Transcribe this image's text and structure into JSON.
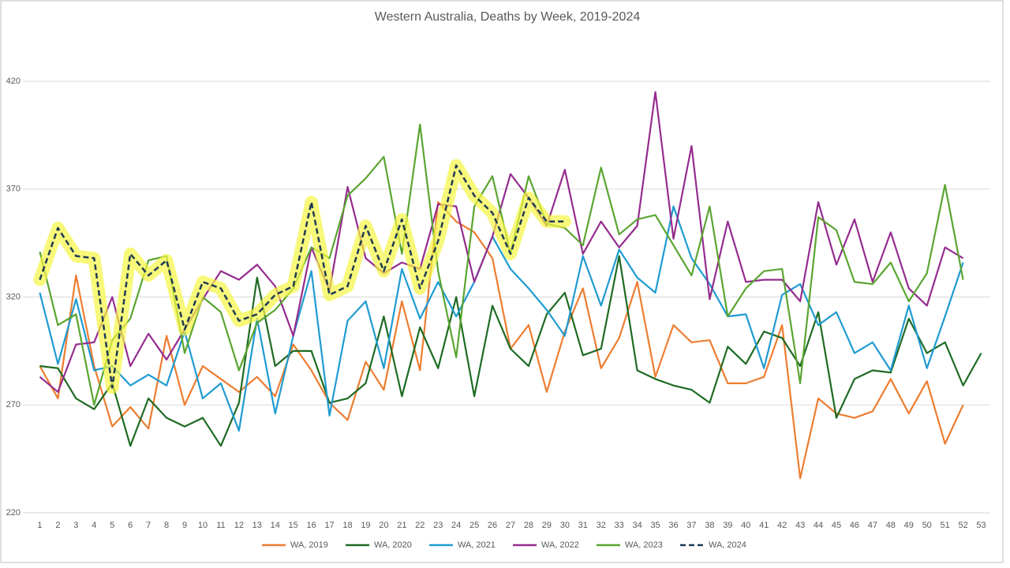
{
  "chart_data": {
    "type": "line",
    "title": "Western Australia, Deaths by Week, 2019-2024",
    "categories": [
      1,
      2,
      3,
      4,
      5,
      6,
      7,
      8,
      9,
      10,
      11,
      12,
      13,
      14,
      15,
      16,
      17,
      18,
      19,
      20,
      21,
      22,
      23,
      24,
      25,
      26,
      27,
      28,
      29,
      30,
      31,
      32,
      33,
      34,
      35,
      36,
      37,
      38,
      39,
      40,
      41,
      42,
      43,
      44,
      45,
      46,
      47,
      48,
      49,
      50,
      51,
      52,
      53
    ],
    "ylim": [
      220,
      420
    ],
    "yticks": [
      220,
      270,
      320,
      370,
      420
    ],
    "grid": true,
    "legend": "bottom",
    "series": [
      {
        "name": "WA, 2019",
        "color": "#ed7d31",
        "values": [
          288,
          273,
          330,
          288,
          260,
          269,
          259,
          302,
          270,
          288,
          282,
          276,
          283,
          274,
          298,
          286,
          271,
          263,
          290,
          277,
          318,
          286,
          364,
          355,
          350,
          338,
          296,
          307,
          276,
          304,
          324,
          287,
          301,
          327,
          283,
          307,
          299,
          300,
          280,
          280,
          283,
          307,
          236,
          273,
          266,
          264,
          267,
          282,
          266,
          281,
          252,
          270,
          null
        ]
      },
      {
        "name": "WA, 2020",
        "color": "#1e6b23",
        "values": [
          288,
          287,
          273,
          268,
          280,
          251,
          273,
          264,
          260,
          264,
          251,
          271,
          329,
          288,
          295,
          295,
          271,
          273,
          280,
          311,
          274,
          306,
          287,
          320,
          274,
          316,
          296,
          288,
          312,
          322,
          293,
          296,
          339,
          286,
          282,
          279,
          277,
          271,
          297,
          289,
          304,
          301,
          288,
          313,
          264,
          282,
          286,
          285,
          310,
          294,
          299,
          279,
          294
        ]
      },
      {
        "name": "WA, 2021",
        "color": "#1f9bd1",
        "values": [
          322,
          289,
          319,
          286,
          288,
          279,
          284,
          279,
          304,
          273,
          280,
          258,
          310,
          266,
          302,
          332,
          265,
          309,
          318,
          287,
          333,
          310,
          327,
          311,
          327,
          348,
          333,
          324,
          314,
          302,
          339,
          316,
          342,
          329,
          322,
          362,
          338,
          326,
          311,
          312,
          287,
          321,
          326,
          307,
          313,
          294,
          299,
          286,
          316,
          287,
          311,
          336,
          null
        ]
      },
      {
        "name": "WA, 2022",
        "color": "#952c8e",
        "values": [
          283,
          276,
          298,
          299,
          320,
          288,
          303,
          291,
          305,
          319,
          332,
          328,
          335,
          325,
          302,
          343,
          323,
          371,
          338,
          331,
          336,
          333,
          363,
          362,
          327,
          348,
          377,
          366,
          353,
          379,
          340,
          355,
          343,
          353,
          415,
          347,
          390,
          319,
          355,
          327,
          328,
          328,
          318,
          364,
          335,
          356,
          327,
          350,
          324,
          316,
          343,
          338,
          null
        ]
      },
      {
        "name": "WA, 2023",
        "color": "#5aa531",
        "values": [
          341,
          307,
          312,
          270,
          300,
          310,
          337,
          339,
          294,
          320,
          313,
          286,
          308,
          314,
          324,
          343,
          338,
          367,
          375,
          385,
          340,
          400,
          332,
          292,
          362,
          376,
          340,
          376,
          354,
          352,
          344,
          380,
          349,
          356,
          358,
          344,
          330,
          362,
          311,
          324,
          332,
          333,
          280,
          357,
          351,
          327,
          326,
          336,
          318,
          331,
          372,
          328,
          null
        ]
      },
      {
        "name": "WA, 2024",
        "color": "#1f3a52",
        "values": [
          328,
          352,
          339,
          338,
          278,
          340,
          330,
          337,
          305,
          327,
          324,
          309,
          312,
          321,
          325,
          364,
          321,
          325,
          353,
          332,
          356,
          324,
          346,
          381,
          367,
          359,
          340,
          366,
          355,
          355,
          null,
          null,
          null,
          null,
          null,
          null,
          null,
          null,
          null,
          null,
          null,
          null,
          null,
          null,
          null,
          null,
          null,
          null,
          null,
          null,
          null,
          null,
          null
        ]
      }
    ]
  }
}
